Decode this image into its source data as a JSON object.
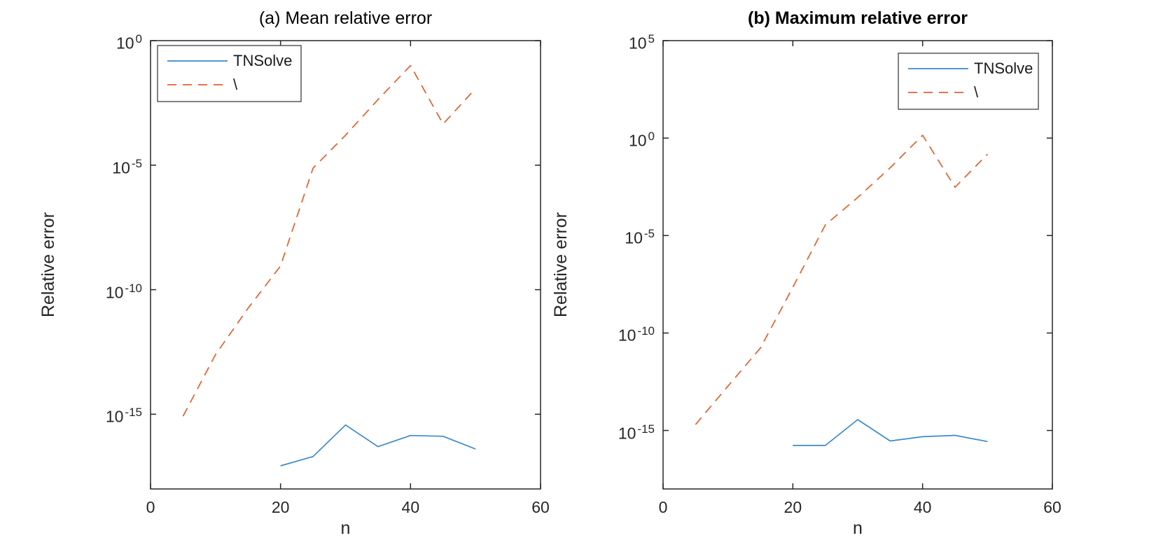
{
  "figure": {
    "background": "#ffffff",
    "axis_color": "#262626",
    "title_color": "#000000"
  },
  "chart_data": [
    {
      "type": "line",
      "title": "(a) Mean relative error",
      "title_bold": false,
      "xlabel": "n",
      "ylabel": "Relative error",
      "xlim": [
        0,
        60
      ],
      "xticks": [
        0,
        20,
        40,
        60
      ],
      "yscale": "log",
      "ylim_exp": [
        -18,
        0
      ],
      "ytick_exps": [
        0,
        -5,
        -10,
        -15
      ],
      "grid": false,
      "legend_position": "top-left",
      "series": [
        {
          "name": "TNSolve",
          "style": "solid",
          "color": "#3d8ac9",
          "x": [
            20,
            25,
            30,
            35,
            40,
            45,
            50
          ],
          "y": [
            8.5e-18,
            2e-17,
            3.7e-16,
            5e-17,
            1.4e-16,
            1.3e-16,
            4e-17
          ]
        },
        {
          "name": "\\",
          "style": "dashed",
          "color": "#e2602c",
          "x": [
            5,
            10,
            15,
            20,
            25,
            30,
            35,
            40,
            45,
            50
          ],
          "y": [
            8.3e-16,
            2.5e-13,
            1.8e-11,
            9e-10,
            7.6e-06,
            0.00016,
            0.0043,
            0.1,
            0.00045,
            0.012
          ]
        }
      ]
    },
    {
      "type": "line",
      "title": "(b) Maximum relative error",
      "title_bold": true,
      "xlabel": "n",
      "ylabel": "Relative error",
      "xlim": [
        0,
        60
      ],
      "xticks": [
        0,
        20,
        40,
        60
      ],
      "yscale": "log",
      "ylim_exp": [
        -18,
        5
      ],
      "ytick_exps": [
        5,
        0,
        -5,
        -10,
        -15
      ],
      "grid": false,
      "legend_position": "top-right",
      "series": [
        {
          "name": "TNSolve",
          "style": "solid",
          "color": "#3d8ac9",
          "x": [
            20,
            25,
            30,
            35,
            40,
            45,
            50
          ],
          "y": [
            1.7e-16,
            1.7e-16,
            3.6e-15,
            2.9e-16,
            4.8e-16,
            5.6e-16,
            2.7e-16
          ]
        },
        {
          "name": "\\",
          "style": "dashed",
          "color": "#e2602c",
          "x": [
            5,
            10,
            15,
            20,
            25,
            30,
            35,
            40,
            45,
            50
          ],
          "y": [
            2e-15,
            1.9e-13,
            1.7e-11,
            2.2e-08,
            3.5e-05,
            0.0009,
            0.03,
            1.4,
            0.003,
            0.15
          ]
        }
      ]
    }
  ]
}
